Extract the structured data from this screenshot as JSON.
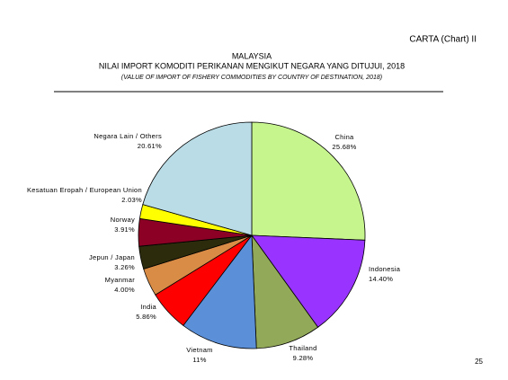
{
  "header": "CARTA (Chart) II",
  "page_number": "25",
  "chart_data": {
    "type": "pie",
    "title": "MALAYSIA",
    "subtitle": "NILAI IMPORT KOMODITI PERIKANAN MENGIKUT NEGARA YANG DITUJUI, 2018",
    "subtitle_en": "(VALUE OF IMPORT OF FISHERY COMMODITIES BY COUNTRY OF DESTINATION, 2018)",
    "categories": [
      "China",
      "Indonesia",
      "Thailand",
      "Vietnam",
      "India",
      "Myanmar",
      "Jepun / Japan",
      "Norway",
      "Kesatuan Eropah / European Union",
      "Negara Lain / Others"
    ],
    "values": [
      25.68,
      14.4,
      9.28,
      11,
      5.86,
      4.0,
      3.26,
      3.91,
      2.03,
      20.61
    ],
    "value_labels": [
      "25.68%",
      "14.40%",
      "9.28%",
      "11%",
      "5.86%",
      "4.00%",
      "3.26%",
      "3.91%",
      "2.03%",
      "20.61%"
    ],
    "colors": [
      "#c6f58e",
      "#9933ff",
      "#93a95a",
      "#5b8fd8",
      "#ff0000",
      "#d98c45",
      "#2c2c0c",
      "#8b0024",
      "#ffff00",
      "#b9dce6"
    ]
  }
}
